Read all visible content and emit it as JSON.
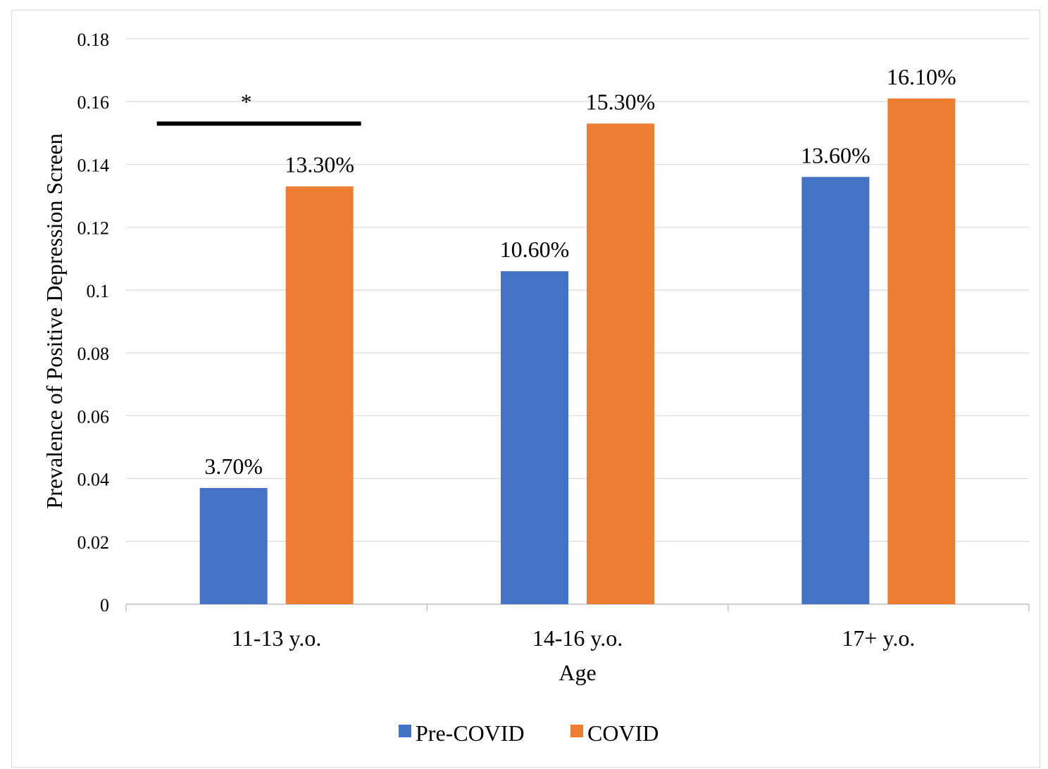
{
  "chart_data": {
    "type": "bar",
    "title": "",
    "xlabel": "Age",
    "ylabel": "Prevalence of Positive Depression Screen",
    "categories": [
      "11-13 y.o.",
      "14-16 y.o.",
      "17+ y.o."
    ],
    "series": [
      {
        "name": "Pre-COVID",
        "color": "#4472C4",
        "values": [
          0.037,
          0.106,
          0.136
        ],
        "labels": [
          "3.70%",
          "10.60%",
          "13.60%"
        ]
      },
      {
        "name": "COVID",
        "color": "#ED7D31",
        "values": [
          0.133,
          0.153,
          0.161
        ],
        "labels": [
          "13.30%",
          "15.30%",
          "16.10%"
        ]
      }
    ],
    "ylim": [
      0,
      0.18
    ],
    "yticks": [
      0,
      0.02,
      0.04,
      0.06,
      0.08,
      0.1,
      0.12,
      0.14,
      0.16,
      0.18
    ],
    "ytick_labels": [
      "0",
      "0.02",
      "0.04",
      "0.06",
      "0.08",
      "0.1",
      "0.12",
      "0.14",
      "0.16",
      "0.18"
    ],
    "grid": true,
    "legend": "bottom",
    "annotation": {
      "text": "*",
      "category": "11-13 y.o.",
      "y": 0.153
    }
  }
}
